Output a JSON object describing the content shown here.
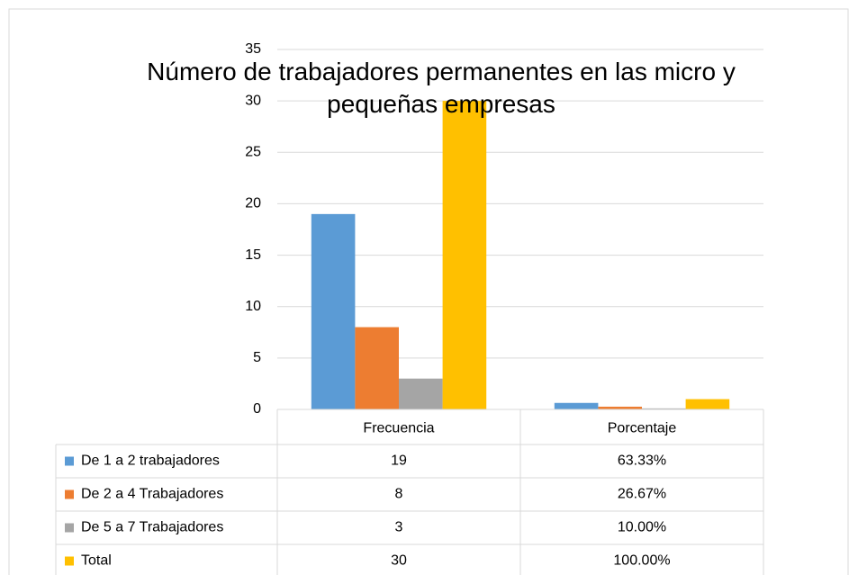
{
  "chart_data": {
    "type": "bar",
    "title": "Número de trabajadores permanentes en las micro y pequeñas empresas",
    "categories": [
      "Frecuencia",
      "Porcentaje"
    ],
    "series": [
      {
        "name": "De 1 a 2 trabajadores",
        "color": "#5b9bd5",
        "values": [
          19,
          0.6333
        ],
        "value_labels": [
          "19",
          "63.33%"
        ]
      },
      {
        "name": "De 2 a 4 Trabajadores",
        "color": "#ed7d31",
        "values": [
          8,
          0.2667
        ],
        "value_labels": [
          "8",
          "26.67%"
        ]
      },
      {
        "name": "De 5 a 7 Trabajadores",
        "color": "#a5a5a5",
        "values": [
          3,
          0.1
        ],
        "value_labels": [
          "3",
          "10.00%"
        ]
      },
      {
        "name": "Total",
        "color": "#ffc000",
        "values": [
          30,
          1
        ],
        "value_labels": [
          "30",
          "100.00%"
        ]
      }
    ],
    "ylim": [
      0,
      35
    ],
    "yticks": [
      0,
      5,
      10,
      15,
      20,
      25,
      30,
      35
    ],
    "grid": true,
    "data_table": true
  }
}
